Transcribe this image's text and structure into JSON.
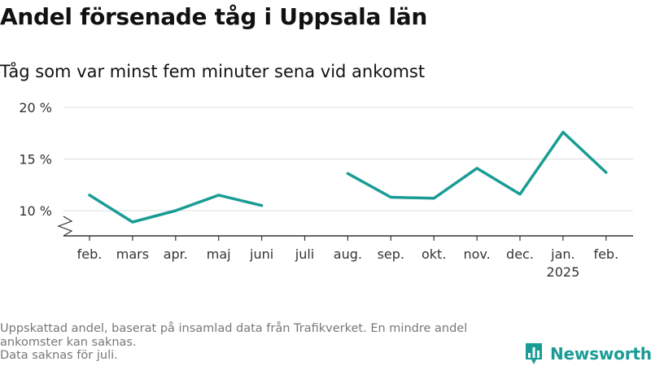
{
  "title": "Andel försenade tåg i Uppsala län",
  "subtitle": "Tåg som var minst fem minuter sena vid ankomst",
  "footnote": [
    "Uppskattad andel, baserat på insamlad data från Trafikverket. En mindre andel ankomster kan saknas.",
    "Data saknas för juli."
  ],
  "brand": {
    "name": "Newsworthy",
    "color": "#1a9c95"
  },
  "chart_data": {
    "type": "line",
    "title": "Andel försenade tåg i Uppsala län",
    "subtitle": "Tåg som var minst fem minuter sena vid ankomst",
    "categories": [
      "feb.",
      "mars",
      "apr.",
      "maj",
      "juni",
      "juli",
      "aug.",
      "sep.",
      "okt.",
      "nov.",
      "dec.",
      "jan.",
      "feb."
    ],
    "category_sublabels": {
      "11": "2025"
    },
    "series": [
      {
        "color": "#1a9c95",
        "values": [
          11.5,
          8.9,
          10.0,
          11.5,
          10.5,
          null,
          13.6,
          11.3,
          11.2,
          14.1,
          11.6,
          17.6,
          13.7
        ]
      }
    ],
    "yticks": [
      10,
      15,
      20
    ],
    "ytick_labels": [
      "10 %",
      "15 %",
      "20 %"
    ],
    "ylim": [
      7.5,
      20
    ],
    "axis_break": true,
    "grid": true,
    "colors": {
      "line": "#1a9c95",
      "grid": "#dddddd",
      "axis": "#333333"
    }
  }
}
